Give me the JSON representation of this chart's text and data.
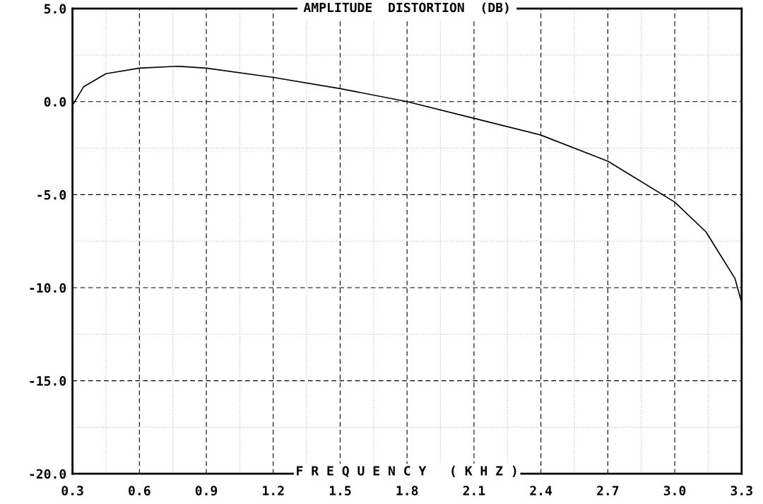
{
  "chart_data": {
    "type": "line",
    "title": "AMPLITUDE  DISTORTION  (DB)",
    "xlabel": "F R E Q U E N C Y   ( K H Z )",
    "x": [
      0.3,
      0.35,
      0.45,
      0.6,
      0.77,
      0.9,
      1.2,
      1.5,
      1.8,
      2.1,
      2.4,
      2.7,
      3.0,
      3.14,
      3.27,
      3.3
    ],
    "series": [
      {
        "color": "#000000",
        "values": [
          -0.2,
          0.8,
          1.5,
          1.8,
          1.9,
          1.8,
          1.3,
          0.7,
          0.0,
          -0.9,
          -1.8,
          -3.2,
          -5.4,
          -7.0,
          -9.5,
          -10.8
        ]
      }
    ],
    "xlim": [
      0.3,
      3.3
    ],
    "xticks": [
      0.3,
      0.6,
      0.9,
      1.2,
      1.5,
      1.8,
      2.1,
      2.4,
      2.7,
      {
        "value": 3.0,
        "label": "3.0"
      },
      3.3
    ],
    "ylim": [
      -20,
      5
    ],
    "yticks": [
      {
        "value": 5,
        "label": "5.0"
      },
      {
        "value": 0,
        "label": "0.0"
      },
      {
        "value": -5,
        "label": "-5.0"
      },
      {
        "value": -10,
        "label": "-10.0"
      },
      {
        "value": -15,
        "label": "-15.0"
      },
      {
        "value": -20,
        "label": "-20.0"
      }
    ],
    "grid": true,
    "marker": "none",
    "line_style": "solid"
  }
}
